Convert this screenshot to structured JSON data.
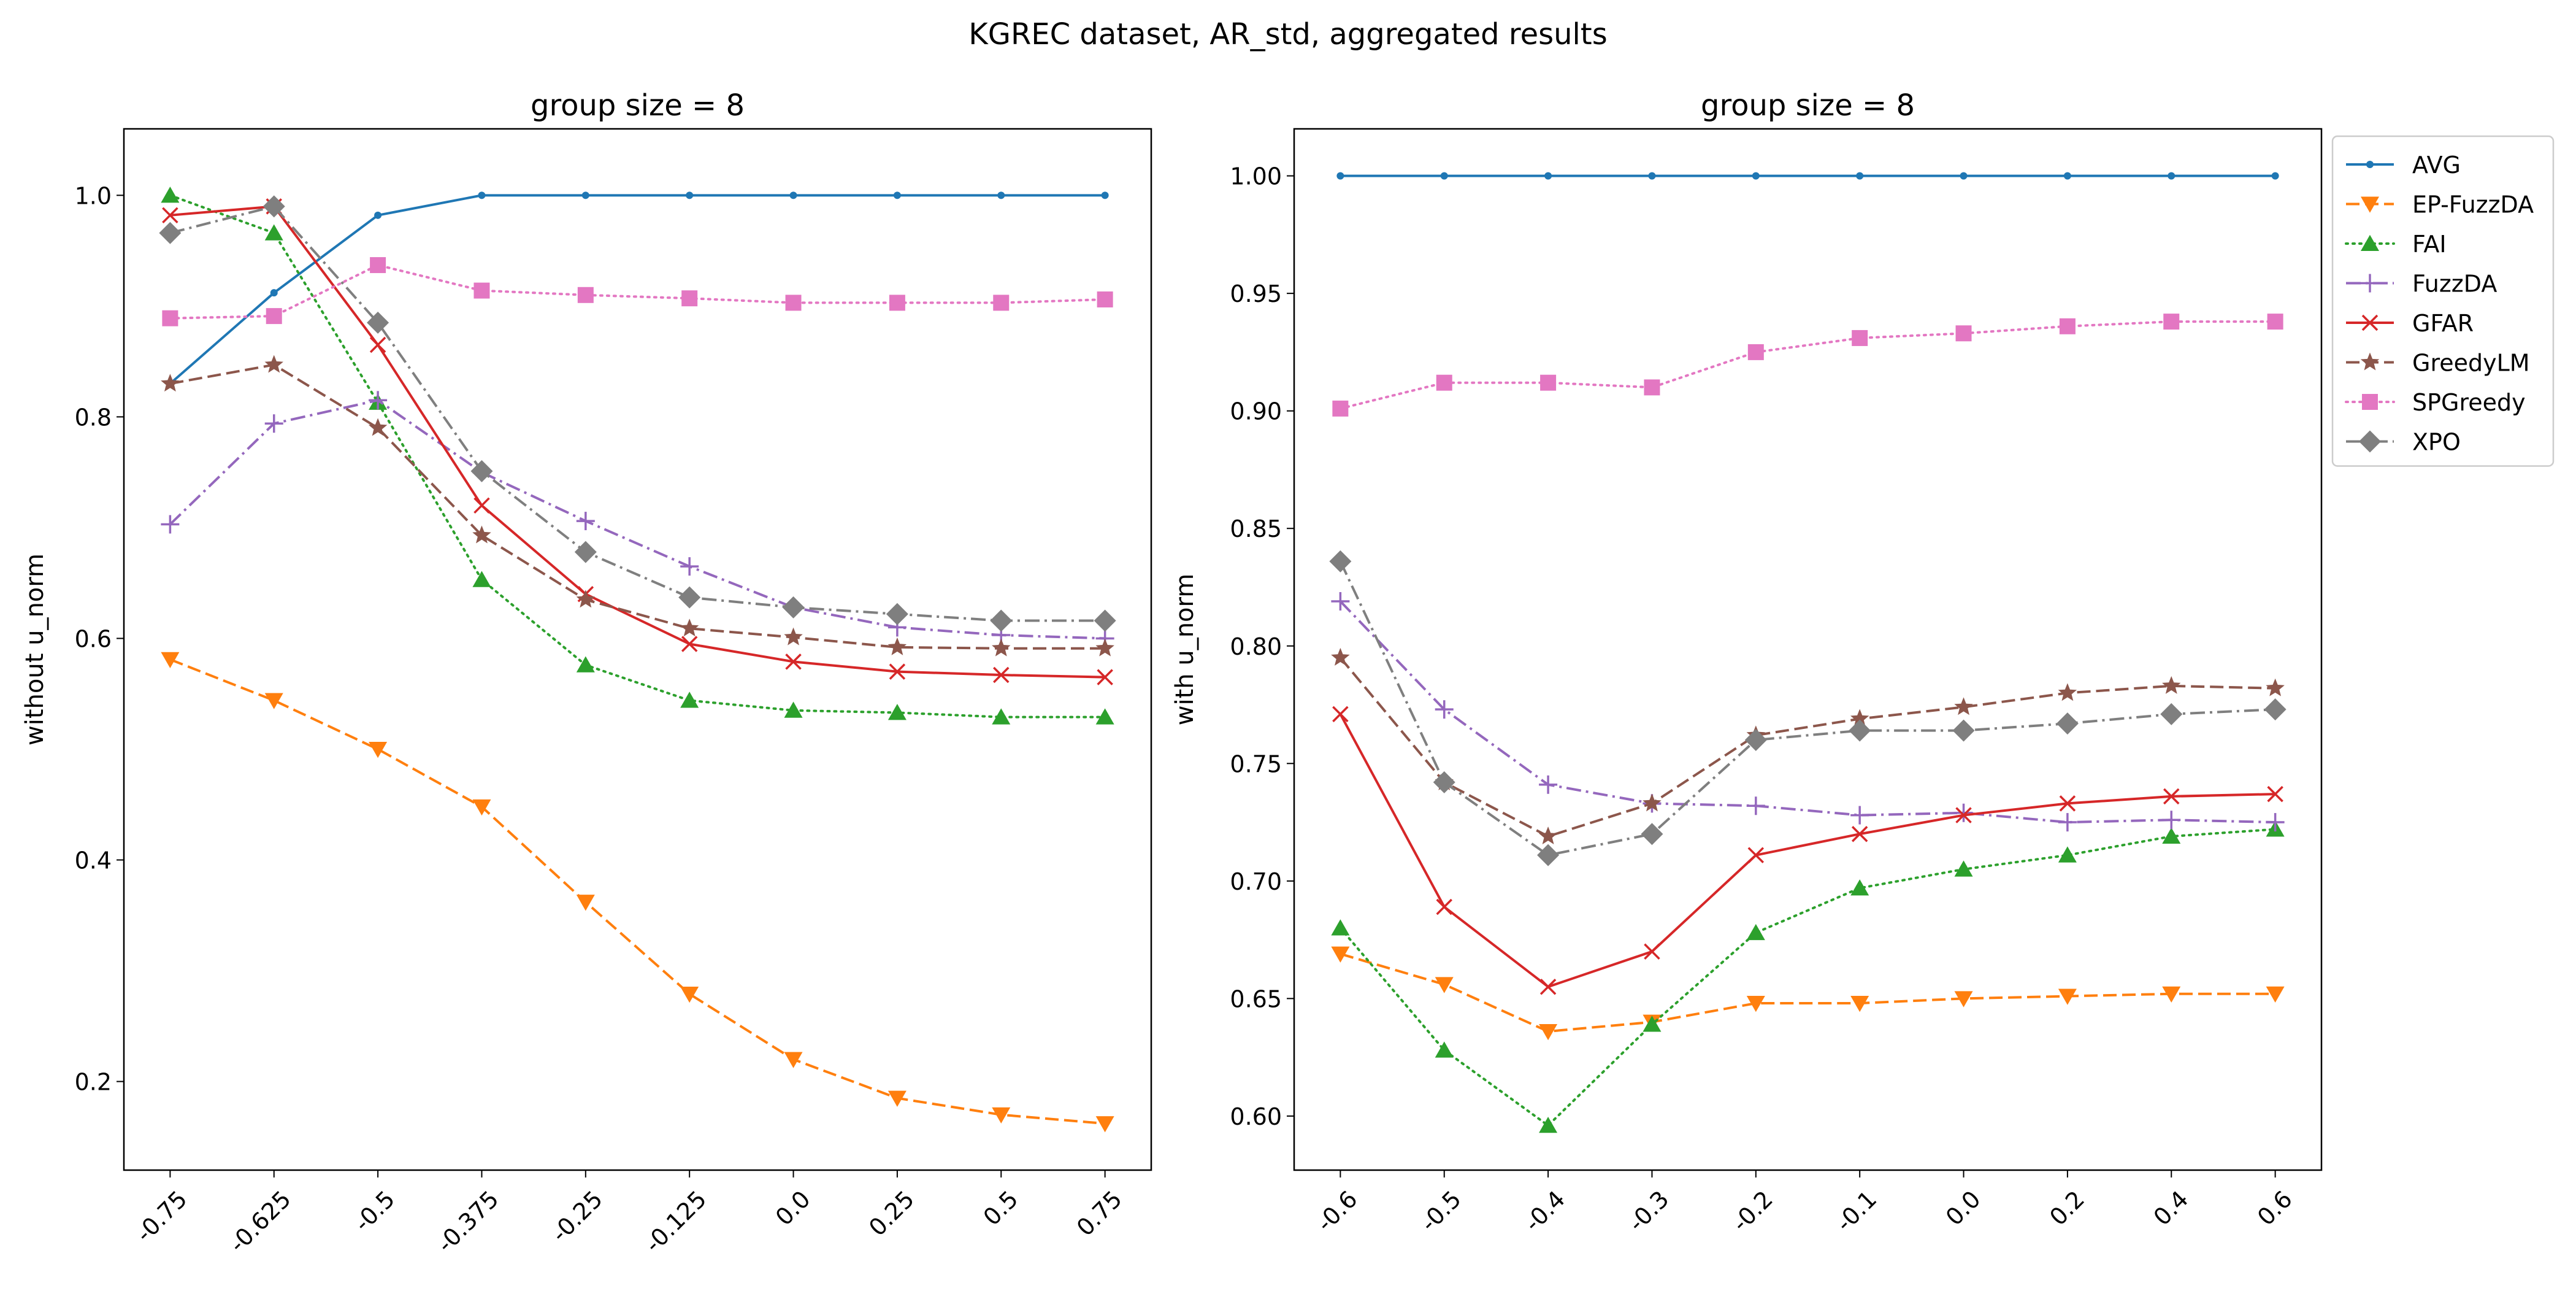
{
  "figure": {
    "suptitle": "KGREC dataset, AR_std, aggregated results"
  },
  "chart_data": [
    {
      "type": "line",
      "title": "group size = 8",
      "xlabel": "",
      "ylabel": "without u_norm",
      "categories": [
        "-0.75",
        "-0.625",
        "-0.5",
        "-0.375",
        "-0.25",
        "-0.125",
        "0.0",
        "0.25",
        "0.5",
        "0.75"
      ],
      "ylim": [
        0.12,
        1.06
      ],
      "yticks": [
        0.2,
        0.4,
        0.6,
        0.8,
        1.0
      ],
      "ytick_labels": [
        "0.2",
        "0.4",
        "0.6",
        "0.8",
        "1.0"
      ],
      "grid": false,
      "series": [
        {
          "name": "AVG",
          "color": "#1f77b4",
          "dash": "solid",
          "marker": "point",
          "values": [
            0.83,
            0.912,
            0.982,
            1.0,
            1.0,
            1.0,
            1.0,
            1.0,
            1.0,
            1.0
          ]
        },
        {
          "name": "EP-FuzzDA",
          "color": "#ff7f0e",
          "dash": "dashed",
          "marker": "triangle-down",
          "values": [
            0.581,
            0.544,
            0.5,
            0.448,
            0.362,
            0.279,
            0.22,
            0.185,
            0.17,
            0.162
          ]
        },
        {
          "name": "FAI",
          "color": "#2ca02c",
          "dash": "dotted",
          "marker": "triangle-up",
          "values": [
            1.0,
            0.966,
            0.813,
            0.653,
            0.576,
            0.544,
            0.535,
            0.533,
            0.529,
            0.529
          ]
        },
        {
          "name": "FuzzDA",
          "color": "#9467bd",
          "dash": "dashdot",
          "marker": "plus",
          "values": [
            0.703,
            0.794,
            0.815,
            0.75,
            0.706,
            0.665,
            0.628,
            0.61,
            0.603,
            0.6
          ]
        },
        {
          "name": "GFAR",
          "color": "#d62728",
          "dash": "solid",
          "marker": "x",
          "values": [
            0.982,
            0.99,
            0.865,
            0.72,
            0.64,
            0.595,
            0.579,
            0.57,
            0.567,
            0.565
          ]
        },
        {
          "name": "GreedyLM",
          "color": "#8c564b",
          "dash": "dashed",
          "marker": "star",
          "values": [
            0.83,
            0.847,
            0.79,
            0.693,
            0.635,
            0.609,
            0.601,
            0.592,
            0.591,
            0.591
          ]
        },
        {
          "name": "SPGreedy",
          "color": "#e377c2",
          "dash": "dotted",
          "marker": "square",
          "values": [
            0.889,
            0.891,
            0.937,
            0.914,
            0.91,
            0.907,
            0.903,
            0.903,
            0.903,
            0.906
          ]
        },
        {
          "name": "XPO",
          "color": "#7f7f7f",
          "dash": "dashdot",
          "marker": "diamond",
          "values": [
            0.966,
            0.99,
            0.885,
            0.751,
            0.678,
            0.637,
            0.628,
            0.622,
            0.616,
            0.616
          ]
        }
      ]
    },
    {
      "type": "line",
      "title": "group size = 8",
      "xlabel": "",
      "ylabel": "with u_norm",
      "categories": [
        "-0.6",
        "-0.5",
        "-0.4",
        "-0.3",
        "-0.2",
        "-0.1",
        "0.0",
        "0.2",
        "0.4",
        "0.6"
      ],
      "ylim": [
        0.577,
        1.02
      ],
      "yticks": [
        0.6,
        0.65,
        0.7,
        0.75,
        0.8,
        0.85,
        0.9,
        0.95,
        1.0
      ],
      "ytick_labels": [
        "0.60",
        "0.65",
        "0.70",
        "0.75",
        "0.80",
        "0.85",
        "0.90",
        "0.95",
        "1.00"
      ],
      "grid": false,
      "legend": "outside-right",
      "series": [
        {
          "name": "AVG",
          "color": "#1f77b4",
          "dash": "solid",
          "marker": "point",
          "values": [
            1.0,
            1.0,
            1.0,
            1.0,
            1.0,
            1.0,
            1.0,
            1.0,
            1.0,
            1.0
          ]
        },
        {
          "name": "EP-FuzzDA",
          "color": "#ff7f0e",
          "dash": "dashed",
          "marker": "triangle-down",
          "values": [
            0.669,
            0.656,
            0.636,
            0.64,
            0.648,
            0.648,
            0.65,
            0.651,
            0.652,
            0.652
          ]
        },
        {
          "name": "FAI",
          "color": "#2ca02c",
          "dash": "dotted",
          "marker": "triangle-up",
          "values": [
            0.68,
            0.628,
            0.596,
            0.639,
            0.678,
            0.697,
            0.705,
            0.711,
            0.719,
            0.722
          ]
        },
        {
          "name": "FuzzDA",
          "color": "#9467bd",
          "dash": "dashdot",
          "marker": "plus",
          "values": [
            0.819,
            0.773,
            0.741,
            0.733,
            0.732,
            0.728,
            0.729,
            0.725,
            0.726,
            0.725
          ]
        },
        {
          "name": "GFAR",
          "color": "#d62728",
          "dash": "solid",
          "marker": "x",
          "values": [
            0.771,
            0.689,
            0.655,
            0.67,
            0.711,
            0.72,
            0.728,
            0.733,
            0.736,
            0.737
          ]
        },
        {
          "name": "GreedyLM",
          "color": "#8c564b",
          "dash": "dashed",
          "marker": "star",
          "values": [
            0.795,
            0.742,
            0.719,
            0.733,
            0.762,
            0.769,
            0.774,
            0.78,
            0.783,
            0.782
          ]
        },
        {
          "name": "SPGreedy",
          "color": "#e377c2",
          "dash": "dotted",
          "marker": "square",
          "values": [
            0.901,
            0.912,
            0.912,
            0.91,
            0.925,
            0.931,
            0.933,
            0.936,
            0.938,
            0.938
          ]
        },
        {
          "name": "XPO",
          "color": "#7f7f7f",
          "dash": "dashdot",
          "marker": "diamond",
          "values": [
            0.836,
            0.742,
            0.711,
            0.72,
            0.76,
            0.764,
            0.764,
            0.767,
            0.771,
            0.773
          ]
        }
      ]
    }
  ]
}
